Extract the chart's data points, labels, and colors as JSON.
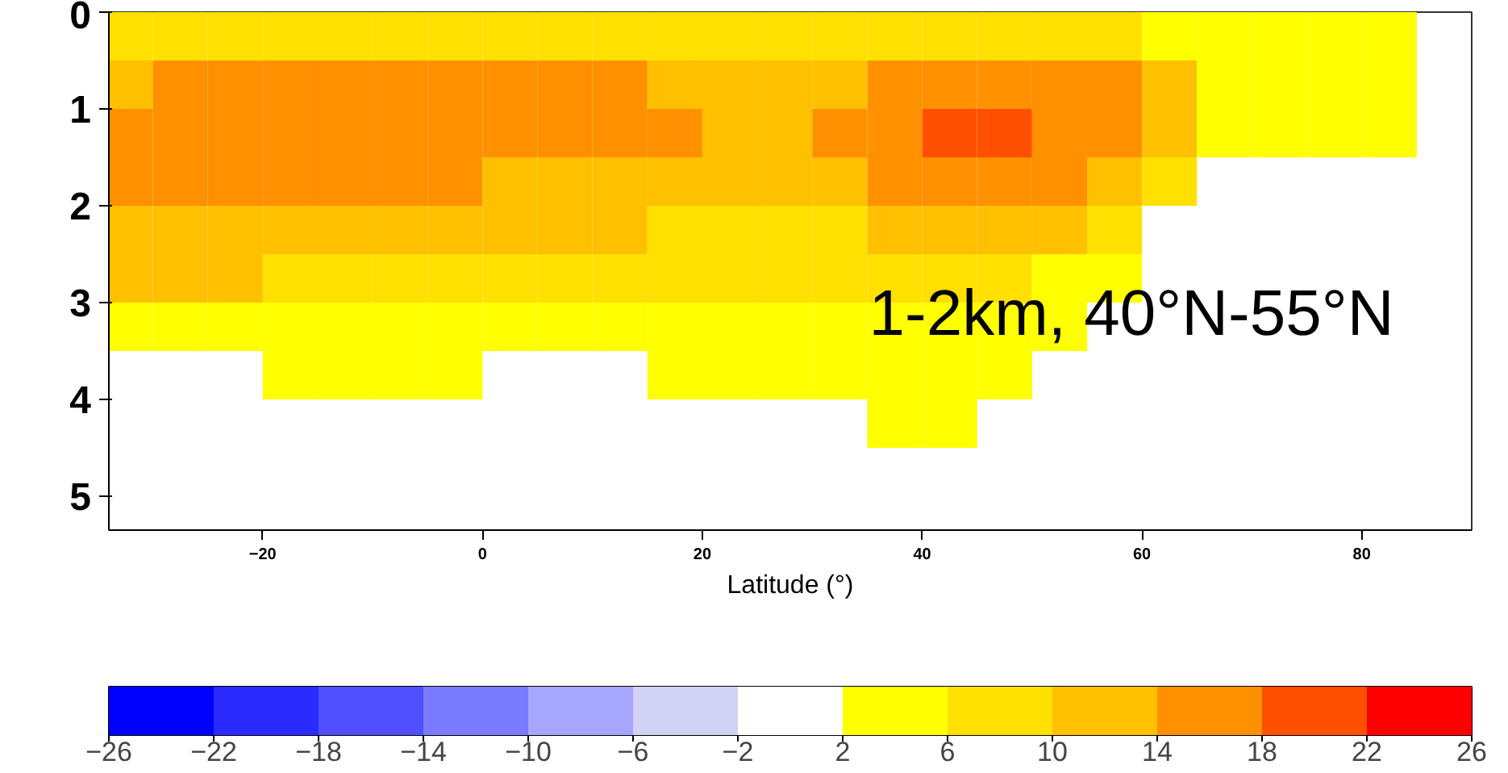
{
  "chart_data": {
    "type": "heatmap",
    "xlabel": "Latitude (°)",
    "x": [
      -32.5,
      -27.5,
      -22.5,
      -17.5,
      -12.5,
      -7.5,
      -2.5,
      2.5,
      7.5,
      12.5,
      17.5,
      22.5,
      27.5,
      32.5,
      37.5,
      42.5,
      47.5,
      52.5,
      57.5,
      62.5,
      67.5,
      72.5,
      77.5,
      82.5,
      87.5
    ],
    "y": [
      0.25,
      0.75,
      1.25,
      1.75,
      2.25,
      2.75,
      3.25,
      3.75,
      4.25
    ],
    "cells": [
      [
        8,
        8,
        8,
        8,
        8,
        8,
        8,
        8,
        8,
        8,
        8,
        8,
        8,
        8,
        8,
        8,
        8,
        8,
        8,
        4,
        4,
        4,
        4,
        4,
        null
      ],
      [
        12,
        16,
        16,
        16,
        16,
        16,
        16,
        16,
        16,
        16,
        12,
        12,
        12,
        12,
        16,
        16,
        16,
        16,
        16,
        12,
        4,
        4,
        4,
        4,
        null
      ],
      [
        16,
        16,
        16,
        16,
        16,
        16,
        16,
        16,
        16,
        16,
        16,
        12,
        12,
        16,
        16,
        20,
        20,
        16,
        16,
        12,
        4,
        4,
        4,
        4,
        null
      ],
      [
        16,
        16,
        16,
        16,
        16,
        16,
        16,
        12,
        12,
        12,
        12,
        12,
        12,
        12,
        16,
        16,
        16,
        16,
        12,
        8,
        null,
        null,
        null,
        null,
        null
      ],
      [
        12,
        12,
        12,
        12,
        12,
        12,
        12,
        12,
        12,
        12,
        8,
        8,
        8,
        8,
        12,
        12,
        12,
        12,
        8,
        null,
        null,
        null,
        null,
        null,
        null
      ],
      [
        12,
        12,
        12,
        8,
        8,
        8,
        8,
        8,
        8,
        8,
        8,
        8,
        8,
        8,
        8,
        8,
        8,
        4,
        4,
        null,
        null,
        null,
        null,
        null,
        null
      ],
      [
        4,
        4,
        4,
        4,
        4,
        4,
        4,
        4,
        4,
        4,
        4,
        4,
        4,
        4,
        4,
        4,
        4,
        4,
        null,
        null,
        null,
        null,
        null,
        null,
        null
      ],
      [
        null,
        null,
        null,
        4,
        4,
        4,
        4,
        null,
        null,
        null,
        4,
        4,
        4,
        4,
        4,
        4,
        4,
        null,
        null,
        null,
        null,
        null,
        null,
        null,
        null
      ],
      [
        null,
        null,
        null,
        null,
        null,
        null,
        null,
        null,
        null,
        null,
        null,
        null,
        null,
        null,
        4,
        4,
        null,
        null,
        null,
        null,
        null,
        null,
        null,
        null,
        null
      ]
    ],
    "xlim": [
      -34,
      90
    ],
    "xticks": [
      -20,
      0,
      20,
      40,
      60,
      80
    ],
    "ylim": [
      5.35,
      0
    ],
    "yticks": [
      0,
      1,
      2,
      3,
      4,
      5
    ],
    "clim": [
      -26,
      26
    ],
    "cticks": [
      -26,
      -22,
      -18,
      -14,
      -10,
      -6,
      -2,
      2,
      6,
      10,
      14,
      18,
      22,
      26
    ],
    "colors": [
      "#0000ff",
      "#2b2bff",
      "#5050ff",
      "#7b7bff",
      "#a6a6ff",
      "#d2d2f5",
      "#ffffff",
      "#ffff00",
      "#ffe000",
      "#ffc000",
      "#ff9000",
      "#ff5000",
      "#ff0000"
    ],
    "annotations": [
      "1-2km, 40°N-55°N"
    ]
  }
}
